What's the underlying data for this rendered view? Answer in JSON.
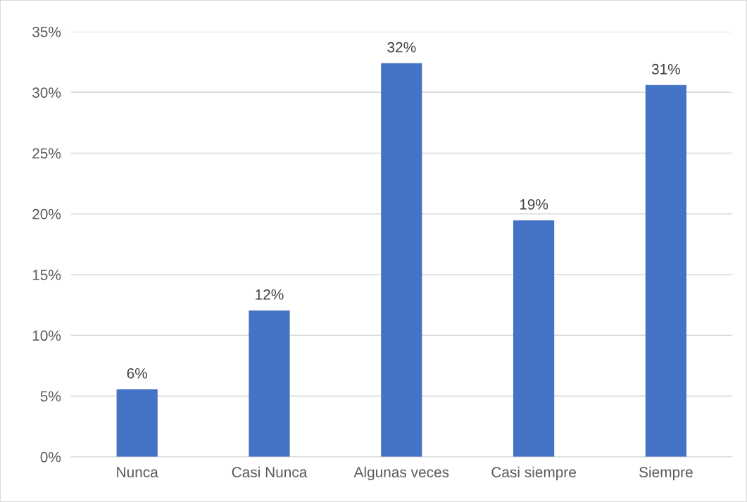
{
  "chart_data": {
    "type": "bar",
    "categories": [
      "Nunca",
      "Casi Nunca",
      "Algunas veces",
      "Casi siempre",
      "Siempre"
    ],
    "values": [
      5.56,
      12.05,
      32.4,
      19.47,
      30.6
    ],
    "value_labels": [
      "6%",
      "12%",
      "32%",
      "19%",
      "31%"
    ],
    "color": "#4472c4",
    "ylim": [
      0,
      35
    ],
    "yticks": [
      {
        "value": 0,
        "label": "0%"
      },
      {
        "value": 5,
        "label": "5%"
      },
      {
        "value": 10,
        "label": "10%"
      },
      {
        "value": 15,
        "label": "15%"
      },
      {
        "value": 20,
        "label": "20%"
      },
      {
        "value": 25,
        "label": "25%"
      },
      {
        "value": 30,
        "label": "30%"
      },
      {
        "value": 35,
        "label": "35%"
      }
    ],
    "grid": "y",
    "legend": false
  }
}
